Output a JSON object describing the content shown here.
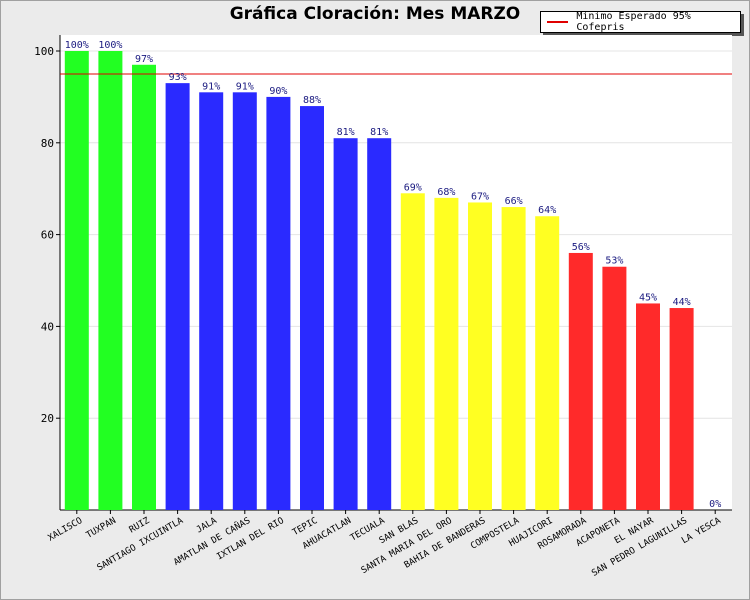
{
  "chart_data": {
    "type": "bar",
    "title": "Gráfica Cloración: Mes MARZO",
    "xlabel": "",
    "ylabel": "",
    "ylim": [
      0,
      100
    ],
    "yticks": [
      "100",
      "80",
      "60",
      "40",
      "20"
    ],
    "categories": [
      "XALISCO",
      "TUXPAN",
      "RUIZ",
      "SANTIAGO IXCUINTLA",
      "JALA",
      "AMATLAN DE CAÑAS",
      "IXTLAN DEL RIO",
      "TEPIC",
      "AHUACATLAN",
      "TECUALA",
      "SAN BLAS",
      "SANTA MARIA DEL ORO",
      "BAHIA DE BANDERAS",
      "COMPOSTELA",
      "HUAJICORI",
      "ROSAMORADA",
      "ACAPONETA",
      "EL NAYAR",
      "SAN PEDRO LAGUNILLAS",
      "LA YESCA"
    ],
    "values": [
      100,
      100,
      97,
      93,
      91,
      91,
      90,
      88,
      81,
      81,
      69,
      68,
      67,
      66,
      64,
      56,
      53,
      45,
      44,
      0
    ],
    "value_labels": [
      "100%",
      "100%",
      "97%",
      "93%",
      "91%",
      "91%",
      "90%",
      "88%",
      "81%",
      "81%",
      "69%",
      "68%",
      "67%",
      "66%",
      "64%",
      "56%",
      "53%",
      "45%",
      "44%",
      "0%"
    ],
    "colors": [
      "#22ff22",
      "#22ff22",
      "#22ff22",
      "#2a2aff",
      "#2a2aff",
      "#2a2aff",
      "#2a2aff",
      "#2a2aff",
      "#2a2aff",
      "#2a2aff",
      "#ffff22",
      "#ffff22",
      "#ffff22",
      "#ffff22",
      "#ffff22",
      "#ff2a2a",
      "#ff2a2a",
      "#ff2a2a",
      "#ff2a2a",
      "#ff2a2a"
    ],
    "reference_line": {
      "value": 95,
      "label": "Minimo Esperado 95% Cofepris",
      "color": "#e00000"
    },
    "legend": {
      "entries": [
        "Minimo Esperado 95% Cofepris"
      ],
      "placement": "top-right"
    },
    "grid": true
  }
}
